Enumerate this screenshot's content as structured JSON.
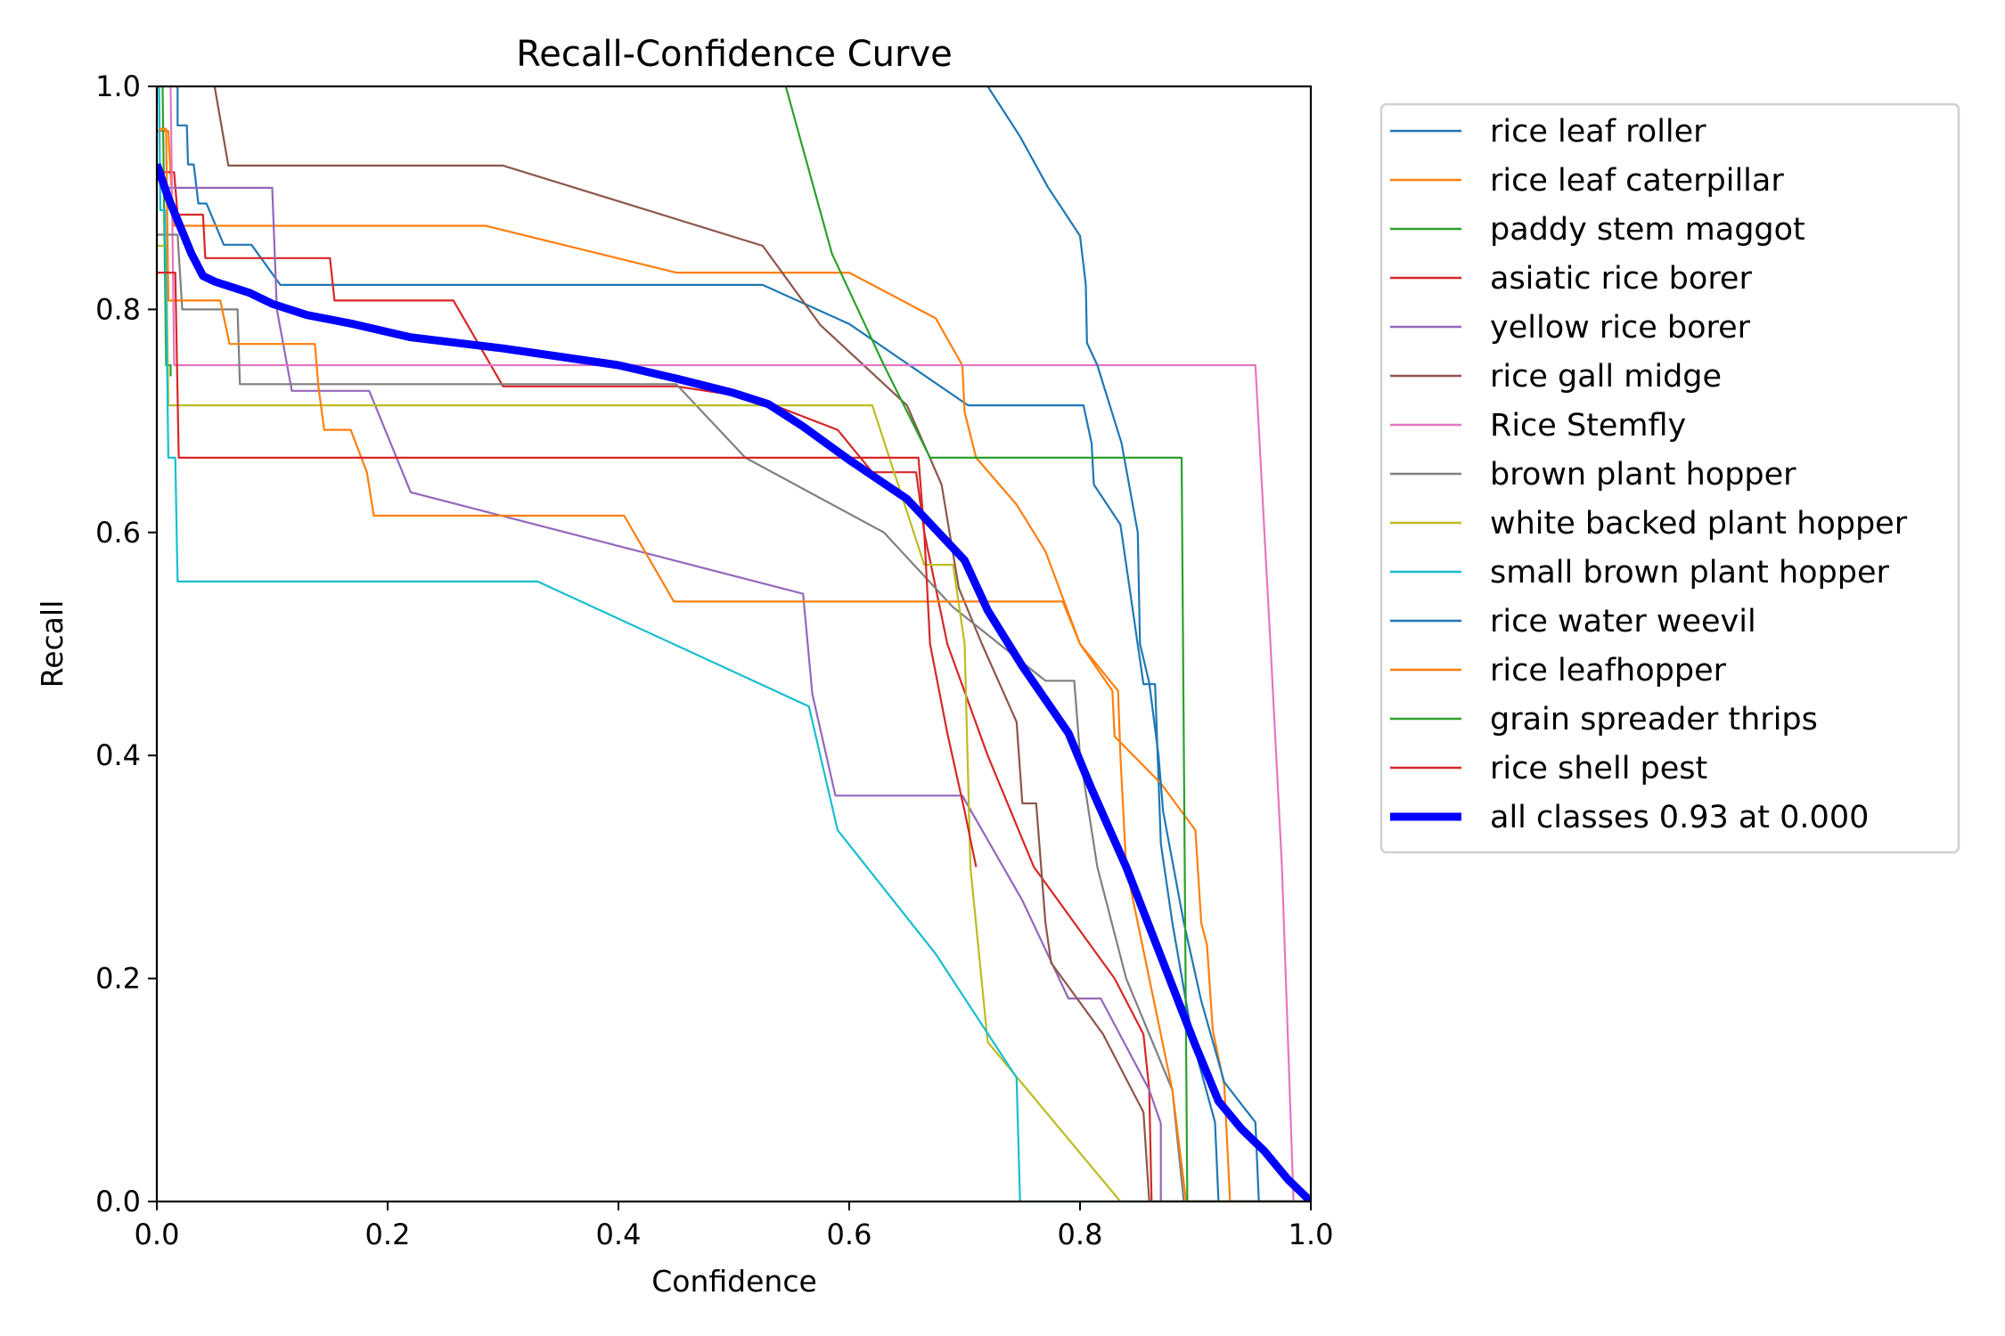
{
  "chart_data": {
    "type": "line",
    "title": "Recall-Confidence Curve",
    "xlabel": "Confidence",
    "ylabel": "Recall",
    "xlim": [
      0.0,
      1.0
    ],
    "ylim": [
      0.0,
      1.0
    ],
    "xticks": [
      "0.0",
      "0.2",
      "0.4",
      "0.6",
      "0.8",
      "1.0"
    ],
    "yticks": [
      "0.0",
      "0.2",
      "0.4",
      "0.6",
      "0.8",
      "1.0"
    ],
    "grid": false,
    "legend_position": "outside-right-top",
    "series": [
      {
        "name": "rice leaf roller",
        "color": "#1f77b4",
        "width": 1,
        "points": [
          [
            0.0,
            1.0
          ],
          [
            0.018,
            1.0
          ],
          [
            0.018,
            0.965
          ],
          [
            0.026,
            0.965
          ],
          [
            0.027,
            0.93
          ],
          [
            0.032,
            0.93
          ],
          [
            0.036,
            0.895
          ],
          [
            0.043,
            0.895
          ],
          [
            0.058,
            0.858
          ],
          [
            0.082,
            0.858
          ],
          [
            0.107,
            0.822
          ],
          [
            0.525,
            0.822
          ],
          [
            0.6,
            0.787
          ],
          [
            0.703,
            0.714
          ],
          [
            0.803,
            0.714
          ],
          [
            0.81,
            0.68
          ],
          [
            0.812,
            0.643
          ],
          [
            0.835,
            0.607
          ],
          [
            0.855,
            0.464
          ],
          [
            0.865,
            0.464
          ],
          [
            0.87,
            0.321
          ],
          [
            0.88,
            0.25
          ],
          [
            0.898,
            0.143
          ],
          [
            0.917,
            0.071
          ],
          [
            0.92,
            0.0
          ],
          [
            1.0,
            0.0
          ]
        ]
      },
      {
        "name": "rice leaf caterpillar",
        "color": "#ff7f0e",
        "width": 1,
        "points": [
          [
            0.0,
            0.96
          ],
          [
            0.01,
            0.96
          ],
          [
            0.012,
            0.92
          ],
          [
            0.015,
            0.875
          ],
          [
            0.285,
            0.875
          ],
          [
            0.45,
            0.833
          ],
          [
            0.6,
            0.833
          ],
          [
            0.675,
            0.792
          ],
          [
            0.698,
            0.75
          ],
          [
            0.7,
            0.708
          ],
          [
            0.71,
            0.667
          ],
          [
            0.745,
            0.625
          ],
          [
            0.77,
            0.583
          ],
          [
            0.8,
            0.5
          ],
          [
            0.828,
            0.458
          ],
          [
            0.83,
            0.417
          ],
          [
            0.87,
            0.375
          ],
          [
            0.9,
            0.333
          ],
          [
            0.905,
            0.25
          ],
          [
            0.91,
            0.23
          ],
          [
            0.915,
            0.154
          ],
          [
            0.925,
            0.104
          ],
          [
            0.93,
            0.0
          ],
          [
            1.0,
            0.0
          ]
        ]
      },
      {
        "name": "paddy stem maggot",
        "color": "#2ca02c",
        "width": 1,
        "points": [
          [
            0.005,
            1.0
          ],
          [
            0.008,
            0.75
          ],
          [
            0.012,
            0.75
          ],
          [
            0.012,
            0.74
          ]
        ]
      },
      {
        "name": "asiatic rice borer",
        "color": "#d62728",
        "width": 1,
        "points": [
          [
            0.0,
            0.923
          ],
          [
            0.015,
            0.923
          ],
          [
            0.018,
            0.885
          ],
          [
            0.04,
            0.885
          ],
          [
            0.042,
            0.846
          ],
          [
            0.15,
            0.846
          ],
          [
            0.154,
            0.808
          ],
          [
            0.257,
            0.808
          ],
          [
            0.3,
            0.731
          ],
          [
            0.45,
            0.731
          ],
          [
            0.52,
            0.72
          ],
          [
            0.59,
            0.692
          ],
          [
            0.62,
            0.654
          ],
          [
            0.658,
            0.654
          ],
          [
            0.665,
            0.6
          ],
          [
            0.685,
            0.5
          ],
          [
            0.72,
            0.4
          ],
          [
            0.76,
            0.3
          ],
          [
            0.83,
            0.2
          ],
          [
            0.855,
            0.15
          ],
          [
            0.86,
            0.1
          ],
          [
            0.862,
            0.0
          ],
          [
            1.0,
            0.0
          ]
        ]
      },
      {
        "name": "yellow rice borer",
        "color": "#9467bd",
        "width": 1,
        "points": [
          [
            0.004,
            0.909
          ],
          [
            0.1,
            0.909
          ],
          [
            0.104,
            0.8
          ],
          [
            0.117,
            0.727
          ],
          [
            0.184,
            0.727
          ],
          [
            0.22,
            0.636
          ],
          [
            0.56,
            0.545
          ],
          [
            0.568,
            0.455
          ],
          [
            0.588,
            0.364
          ],
          [
            0.698,
            0.364
          ],
          [
            0.75,
            0.27
          ],
          [
            0.79,
            0.182
          ],
          [
            0.818,
            0.182
          ],
          [
            0.86,
            0.1
          ],
          [
            0.87,
            0.07
          ],
          [
            0.87,
            0.0
          ],
          [
            1.0,
            0.0
          ]
        ]
      },
      {
        "name": "rice gall midge",
        "color": "#8c564b",
        "width": 1,
        "points": [
          [
            0.05,
            1.0
          ],
          [
            0.062,
            0.929
          ],
          [
            0.3,
            0.929
          ],
          [
            0.525,
            0.857
          ],
          [
            0.575,
            0.786
          ],
          [
            0.65,
            0.714
          ],
          [
            0.68,
            0.643
          ],
          [
            0.695,
            0.55
          ],
          [
            0.715,
            0.5
          ],
          [
            0.745,
            0.43
          ],
          [
            0.75,
            0.357
          ],
          [
            0.762,
            0.357
          ],
          [
            0.77,
            0.25
          ],
          [
            0.775,
            0.214
          ],
          [
            0.82,
            0.15
          ],
          [
            0.855,
            0.08
          ],
          [
            0.86,
            0.0
          ],
          [
            1.0,
            0.0
          ]
        ]
      },
      {
        "name": "Rice Stemfly",
        "color": "#e377c2",
        "width": 1,
        "points": [
          [
            0.012,
            1.0
          ],
          [
            0.015,
            0.75
          ],
          [
            0.952,
            0.75
          ],
          [
            0.965,
            0.5
          ],
          [
            0.975,
            0.3
          ],
          [
            0.985,
            0.0
          ],
          [
            1.0,
            0.0
          ]
        ]
      },
      {
        "name": "brown plant hopper",
        "color": "#7f7f7f",
        "width": 1,
        "points": [
          [
            0.0,
            0.867
          ],
          [
            0.018,
            0.867
          ],
          [
            0.022,
            0.8
          ],
          [
            0.07,
            0.8
          ],
          [
            0.072,
            0.733
          ],
          [
            0.45,
            0.733
          ],
          [
            0.51,
            0.667
          ],
          [
            0.63,
            0.6
          ],
          [
            0.69,
            0.533
          ],
          [
            0.77,
            0.467
          ],
          [
            0.795,
            0.467
          ],
          [
            0.8,
            0.4
          ],
          [
            0.815,
            0.3
          ],
          [
            0.84,
            0.2
          ],
          [
            0.88,
            0.1
          ],
          [
            0.89,
            0.0
          ],
          [
            1.0,
            0.0
          ]
        ]
      },
      {
        "name": "white backed plant hopper",
        "color": "#bcbd22",
        "width": 1,
        "points": [
          [
            0.0,
            0.857
          ],
          [
            0.008,
            0.857
          ],
          [
            0.01,
            0.714
          ],
          [
            0.62,
            0.714
          ],
          [
            0.665,
            0.571
          ],
          [
            0.69,
            0.571
          ],
          [
            0.7,
            0.5
          ],
          [
            0.705,
            0.3
          ],
          [
            0.72,
            0.143
          ],
          [
            0.835,
            0.0
          ],
          [
            1.0,
            0.0
          ]
        ]
      },
      {
        "name": "small brown plant hopper",
        "color": "#17becf",
        "width": 1,
        "points": [
          [
            0.002,
            1.0
          ],
          [
            0.003,
            0.889
          ],
          [
            0.007,
            0.889
          ],
          [
            0.01,
            0.667
          ],
          [
            0.016,
            0.667
          ],
          [
            0.018,
            0.556
          ],
          [
            0.33,
            0.556
          ],
          [
            0.565,
            0.444
          ],
          [
            0.59,
            0.333
          ],
          [
            0.675,
            0.222
          ],
          [
            0.745,
            0.111
          ],
          [
            0.748,
            0.0
          ],
          [
            1.0,
            0.0
          ]
        ]
      },
      {
        "name": "rice water weevil",
        "color": "#1f77b4",
        "width": 1,
        "points": [
          [
            0.72,
            1.0
          ],
          [
            0.748,
            0.955
          ],
          [
            0.772,
            0.91
          ],
          [
            0.8,
            0.866
          ],
          [
            0.805,
            0.822
          ],
          [
            0.806,
            0.77
          ],
          [
            0.815,
            0.75
          ],
          [
            0.836,
            0.68
          ],
          [
            0.85,
            0.6
          ],
          [
            0.852,
            0.5
          ],
          [
            0.86,
            0.465
          ],
          [
            0.868,
            0.4
          ],
          [
            0.872,
            0.35
          ],
          [
            0.89,
            0.25
          ],
          [
            0.905,
            0.18
          ],
          [
            0.925,
            0.107
          ],
          [
            0.952,
            0.071
          ],
          [
            0.955,
            0.0
          ],
          [
            1.0,
            0.0
          ]
        ]
      },
      {
        "name": "rice leafhopper",
        "color": "#ff7f0e",
        "width": 1,
        "points": [
          [
            0.002,
            0.962
          ],
          [
            0.008,
            0.962
          ],
          [
            0.01,
            0.808
          ],
          [
            0.055,
            0.808
          ],
          [
            0.063,
            0.769
          ],
          [
            0.137,
            0.769
          ],
          [
            0.14,
            0.731
          ],
          [
            0.145,
            0.692
          ],
          [
            0.168,
            0.692
          ],
          [
            0.182,
            0.654
          ],
          [
            0.188,
            0.615
          ],
          [
            0.405,
            0.615
          ],
          [
            0.448,
            0.538
          ],
          [
            0.785,
            0.538
          ],
          [
            0.8,
            0.5
          ],
          [
            0.833,
            0.458
          ],
          [
            0.835,
            0.4
          ],
          [
            0.84,
            0.3
          ],
          [
            0.86,
            0.2
          ],
          [
            0.88,
            0.1
          ],
          [
            0.892,
            0.0
          ],
          [
            1.0,
            0.0
          ]
        ]
      },
      {
        "name": "grain spreader thrips",
        "color": "#2ca02c",
        "width": 1,
        "points": [
          [
            0.545,
            1.0
          ],
          [
            0.585,
            0.85
          ],
          [
            0.63,
            0.75
          ],
          [
            0.67,
            0.667
          ],
          [
            0.888,
            0.667
          ],
          [
            0.893,
            0.0
          ],
          [
            1.0,
            0.0
          ]
        ]
      },
      {
        "name": "rice shell pest",
        "color": "#d62728",
        "width": 1,
        "points": [
          [
            0.0,
            0.833
          ],
          [
            0.016,
            0.833
          ],
          [
            0.019,
            0.667
          ],
          [
            0.66,
            0.667
          ],
          [
            0.665,
            0.6
          ],
          [
            0.67,
            0.5
          ],
          [
            0.685,
            0.42
          ],
          [
            0.7,
            0.35
          ],
          [
            0.71,
            0.3
          ]
        ]
      },
      {
        "name": "all classes 0.93 at 0.000",
        "color": "#0000ff",
        "width": 4,
        "points": [
          [
            0.0,
            0.93
          ],
          [
            0.01,
            0.9
          ],
          [
            0.02,
            0.875
          ],
          [
            0.03,
            0.85
          ],
          [
            0.04,
            0.83
          ],
          [
            0.05,
            0.825
          ],
          [
            0.08,
            0.815
          ],
          [
            0.1,
            0.805
          ],
          [
            0.13,
            0.795
          ],
          [
            0.17,
            0.787
          ],
          [
            0.22,
            0.775
          ],
          [
            0.3,
            0.765
          ],
          [
            0.4,
            0.75
          ],
          [
            0.45,
            0.738
          ],
          [
            0.5,
            0.725
          ],
          [
            0.53,
            0.715
          ],
          [
            0.56,
            0.695
          ],
          [
            0.6,
            0.665
          ],
          [
            0.65,
            0.63
          ],
          [
            0.7,
            0.575
          ],
          [
            0.72,
            0.53
          ],
          [
            0.75,
            0.48
          ],
          [
            0.77,
            0.45
          ],
          [
            0.79,
            0.42
          ],
          [
            0.81,
            0.37
          ],
          [
            0.84,
            0.3
          ],
          [
            0.87,
            0.22
          ],
          [
            0.9,
            0.14
          ],
          [
            0.92,
            0.09
          ],
          [
            0.94,
            0.065
          ],
          [
            0.96,
            0.045
          ],
          [
            0.98,
            0.02
          ],
          [
            1.0,
            0.0
          ]
        ]
      }
    ]
  }
}
